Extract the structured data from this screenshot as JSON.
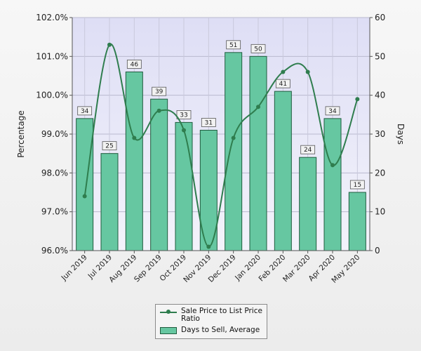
{
  "chart_data": {
    "type": "bar",
    "categories": [
      "Jun 2019",
      "Jul 2019",
      "Aug 2019",
      "Sep 2019",
      "Oct 2019",
      "Nov 2019",
      "Dec 2019",
      "Jan 2020",
      "Feb 2020",
      "Mar 2020",
      "Apr 2020",
      "May 2020"
    ],
    "series": [
      {
        "name": "Days to Sell, Average",
        "type": "bar",
        "axis": "right",
        "values": [
          34,
          25,
          46,
          39,
          33,
          31,
          51,
          50,
          41,
          24,
          34,
          15
        ]
      },
      {
        "name": "Sale Price to List Price Ratio",
        "type": "line",
        "axis": "left",
        "values": [
          97.4,
          101.3,
          98.9,
          99.6,
          99.1,
          96.1,
          98.9,
          99.7,
          100.6,
          100.6,
          98.2,
          99.9
        ]
      }
    ],
    "left_axis": {
      "label": "Percentage",
      "ylim": [
        96.0,
        102.0
      ],
      "ticks": [
        "96.0%",
        "97.0%",
        "98.0%",
        "99.0%",
        "100.0%",
        "101.0%",
        "102.0%"
      ]
    },
    "right_axis": {
      "label": "Days",
      "ylim": [
        0,
        60
      ],
      "ticks": [
        "0",
        "10",
        "20",
        "30",
        "40",
        "50",
        "60"
      ]
    },
    "grid": true,
    "legend_position": "bottom-center",
    "colors": {
      "bar_fill": "#66c7a1",
      "bar_edge": "#1f5c3e",
      "line": "#2f7d4e",
      "plot_bg": "#e6e6f7"
    }
  }
}
